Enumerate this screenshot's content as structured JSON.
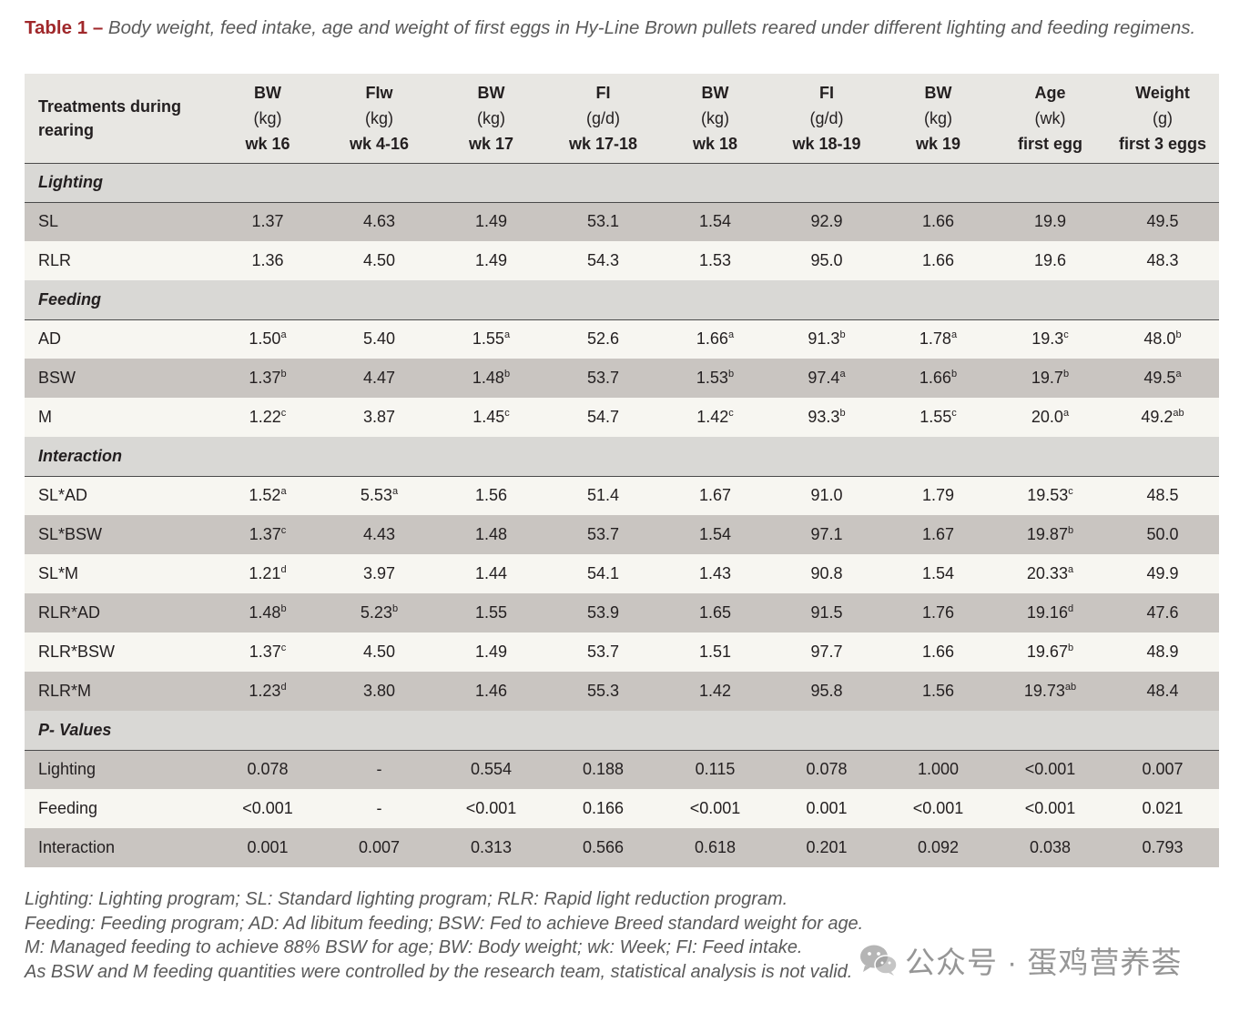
{
  "caption": {
    "label": "Table 1 –",
    "text": "Body weight, feed intake, age and weight of first eggs in Hy-Line Brown pullets reared under different lighting and feeding regimens."
  },
  "table": {
    "header": {
      "first": [
        "Treatments during",
        "rearing"
      ],
      "columns": [
        [
          "BW",
          "(kg)",
          "wk 16"
        ],
        [
          "FIw",
          "(kg)",
          "wk 4-16"
        ],
        [
          "BW",
          "(kg)",
          "wk 17"
        ],
        [
          "FI",
          "(g/d)",
          "wk 17-18"
        ],
        [
          "BW",
          "(kg)",
          "wk 18"
        ],
        [
          "FI",
          "(g/d)",
          "wk 18-19"
        ],
        [
          "BW",
          "(kg)",
          "wk 19"
        ],
        [
          "Age",
          "(wk)",
          "first egg"
        ],
        [
          "Weight",
          "(g)",
          "first 3 eggs"
        ]
      ]
    },
    "sections": [
      {
        "title": "Lighting",
        "rows": [
          {
            "name": "SL",
            "shade": "dark",
            "cells": [
              [
                "1.37",
                ""
              ],
              [
                "4.63",
                ""
              ],
              [
                "1.49",
                ""
              ],
              [
                "53.1",
                ""
              ],
              [
                "1.54",
                ""
              ],
              [
                "92.9",
                ""
              ],
              [
                "1.66",
                ""
              ],
              [
                "19.9",
                ""
              ],
              [
                "49.5",
                ""
              ]
            ]
          },
          {
            "name": "RLR",
            "shade": "light",
            "cells": [
              [
                "1.36",
                ""
              ],
              [
                "4.50",
                ""
              ],
              [
                "1.49",
                ""
              ],
              [
                "54.3",
                ""
              ],
              [
                "1.53",
                ""
              ],
              [
                "95.0",
                ""
              ],
              [
                "1.66",
                ""
              ],
              [
                "19.6",
                ""
              ],
              [
                "48.3",
                ""
              ]
            ]
          }
        ]
      },
      {
        "title": "Feeding",
        "rows": [
          {
            "name": "AD",
            "shade": "light",
            "cells": [
              [
                "1.50",
                "a"
              ],
              [
                "5.40",
                ""
              ],
              [
                "1.55",
                "a"
              ],
              [
                "52.6",
                ""
              ],
              [
                "1.66",
                "a"
              ],
              [
                "91.3",
                "b"
              ],
              [
                "1.78",
                "a"
              ],
              [
                "19.3",
                "c"
              ],
              [
                "48.0",
                "b"
              ]
            ]
          },
          {
            "name": "BSW",
            "shade": "dark",
            "cells": [
              [
                "1.37",
                "b"
              ],
              [
                "4.47",
                ""
              ],
              [
                "1.48",
                "b"
              ],
              [
                "53.7",
                ""
              ],
              [
                "1.53",
                "b"
              ],
              [
                "97.4",
                "a"
              ],
              [
                "1.66",
                "b"
              ],
              [
                "19.7",
                "b"
              ],
              [
                "49.5",
                "a"
              ]
            ]
          },
          {
            "name": "M",
            "shade": "light",
            "cells": [
              [
                "1.22",
                "c"
              ],
              [
                "3.87",
                ""
              ],
              [
                "1.45",
                "c"
              ],
              [
                "54.7",
                ""
              ],
              [
                "1.42",
                "c"
              ],
              [
                "93.3",
                "b"
              ],
              [
                "1.55",
                "c"
              ],
              [
                "20.0",
                "a"
              ],
              [
                "49.2",
                "ab"
              ]
            ]
          }
        ]
      },
      {
        "title": "Interaction",
        "rows": [
          {
            "name": "SL*AD",
            "shade": "light",
            "cells": [
              [
                "1.52",
                "a"
              ],
              [
                "5.53",
                "a"
              ],
              [
                "1.56",
                ""
              ],
              [
                "51.4",
                ""
              ],
              [
                "1.67",
                ""
              ],
              [
                "91.0",
                ""
              ],
              [
                "1.79",
                ""
              ],
              [
                "19.53",
                "c"
              ],
              [
                "48.5",
                ""
              ]
            ]
          },
          {
            "name": "SL*BSW",
            "shade": "dark",
            "cells": [
              [
                "1.37",
                "c"
              ],
              [
                "4.43",
                ""
              ],
              [
                "1.48",
                ""
              ],
              [
                "53.7",
                ""
              ],
              [
                "1.54",
                ""
              ],
              [
                "97.1",
                ""
              ],
              [
                "1.67",
                ""
              ],
              [
                "19.87",
                "b"
              ],
              [
                "50.0",
                ""
              ]
            ]
          },
          {
            "name": "SL*M",
            "shade": "light",
            "cells": [
              [
                "1.21",
                "d"
              ],
              [
                "3.97",
                ""
              ],
              [
                "1.44",
                ""
              ],
              [
                "54.1",
                ""
              ],
              [
                "1.43",
                ""
              ],
              [
                "90.8",
                ""
              ],
              [
                "1.54",
                ""
              ],
              [
                "20.33",
                "a"
              ],
              [
                "49.9",
                ""
              ]
            ]
          },
          {
            "name": "RLR*AD",
            "shade": "dark",
            "cells": [
              [
                "1.48",
                "b"
              ],
              [
                "5.23",
                "b"
              ],
              [
                "1.55",
                ""
              ],
              [
                "53.9",
                ""
              ],
              [
                "1.65",
                ""
              ],
              [
                "91.5",
                ""
              ],
              [
                "1.76",
                ""
              ],
              [
                "19.16",
                "d"
              ],
              [
                "47.6",
                ""
              ]
            ]
          },
          {
            "name": "RLR*BSW",
            "shade": "light",
            "cells": [
              [
                "1.37",
                "c"
              ],
              [
                "4.50",
                ""
              ],
              [
                "1.49",
                ""
              ],
              [
                "53.7",
                ""
              ],
              [
                "1.51",
                ""
              ],
              [
                "97.7",
                ""
              ],
              [
                "1.66",
                ""
              ],
              [
                "19.67",
                "b"
              ],
              [
                "48.9",
                ""
              ]
            ]
          },
          {
            "name": "RLR*M",
            "shade": "dark",
            "cells": [
              [
                "1.23",
                "d"
              ],
              [
                "3.80",
                ""
              ],
              [
                "1.46",
                ""
              ],
              [
                "55.3",
                ""
              ],
              [
                "1.42",
                ""
              ],
              [
                "95.8",
                ""
              ],
              [
                "1.56",
                ""
              ],
              [
                "19.73",
                "ab"
              ],
              [
                "48.4",
                ""
              ]
            ]
          }
        ]
      },
      {
        "title": "P- Values",
        "rows": [
          {
            "name": "Lighting",
            "shade": "dark",
            "cells": [
              [
                "0.078",
                ""
              ],
              [
                "-",
                ""
              ],
              [
                "0.554",
                ""
              ],
              [
                "0.188",
                ""
              ],
              [
                "0.115",
                ""
              ],
              [
                "0.078",
                ""
              ],
              [
                "1.000",
                ""
              ],
              [
                "<0.001",
                ""
              ],
              [
                "0.007",
                ""
              ]
            ]
          },
          {
            "name": "Feeding",
            "shade": "light",
            "cells": [
              [
                "<0.001",
                ""
              ],
              [
                "-",
                ""
              ],
              [
                "<0.001",
                ""
              ],
              [
                "0.166",
                ""
              ],
              [
                "<0.001",
                ""
              ],
              [
                "0.001",
                ""
              ],
              [
                "<0.001",
                ""
              ],
              [
                "<0.001",
                ""
              ],
              [
                "0.021",
                ""
              ]
            ]
          },
          {
            "name": "Interaction",
            "shade": "dark",
            "cells": [
              [
                "0.001",
                ""
              ],
              [
                "0.007",
                ""
              ],
              [
                "0.313",
                ""
              ],
              [
                "0.566",
                ""
              ],
              [
                "0.618",
                ""
              ],
              [
                "0.201",
                ""
              ],
              [
                "0.092",
                ""
              ],
              [
                "0.038",
                ""
              ],
              [
                "0.793",
                ""
              ]
            ]
          }
        ]
      }
    ]
  },
  "notes": [
    "Lighting: Lighting program; SL: Standard lighting program; RLR: Rapid light reduction program.",
    "Feeding: Feeding program; AD: Ad libitum feeding; BSW: Fed to achieve Breed standard weight for age.",
    "M: Managed feeding to achieve 88% BSW for age; BW: Body weight; wk: Week; FI: Feed intake.",
    "As BSW and M feeding quantities were controlled by the research team, statistical analysis is not valid."
  ],
  "watermark": {
    "icon": "wechat-icon",
    "text": "公众号 · 蛋鸡营养荟"
  }
}
